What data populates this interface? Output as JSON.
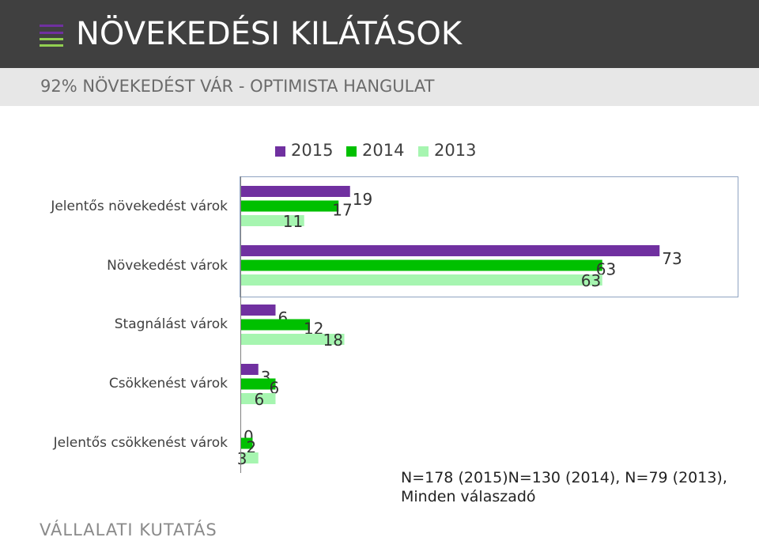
{
  "header": {
    "title": "NÖVEKEDÉSI KILÁTÁSOK",
    "subtitle": "92% NÖVEKEDÉST VÁR - OPTIMISTA HANGULAT"
  },
  "menu_icon_colors": [
    "#7030a0",
    "#00b050",
    "#92d050"
  ],
  "chart_data": {
    "type": "bar",
    "orientation": "horizontal",
    "categories": [
      "Jelentős növekedést várok",
      "Növekedést várok",
      "Stagnálást várok",
      "Csökkenést várok",
      "Jelentős csökkenést várok"
    ],
    "series": [
      {
        "name": "2015",
        "color": "#7030a0",
        "values": [
          19,
          73,
          6,
          3,
          0
        ]
      },
      {
        "name": "2014",
        "color": "#00c000",
        "values": [
          17,
          63,
          12,
          6,
          2
        ]
      },
      {
        "name": "2013",
        "color": "#a6f5b0",
        "values": [
          11,
          63,
          18,
          6,
          3
        ]
      }
    ],
    "legend_position": "top",
    "grid": false
  },
  "note": {
    "line1": "N=178 (2015)N=130 (2014), N=79 (2013),",
    "line2": "Minden válaszadó"
  },
  "footer": "VÁLLALATI KUTATÁS"
}
